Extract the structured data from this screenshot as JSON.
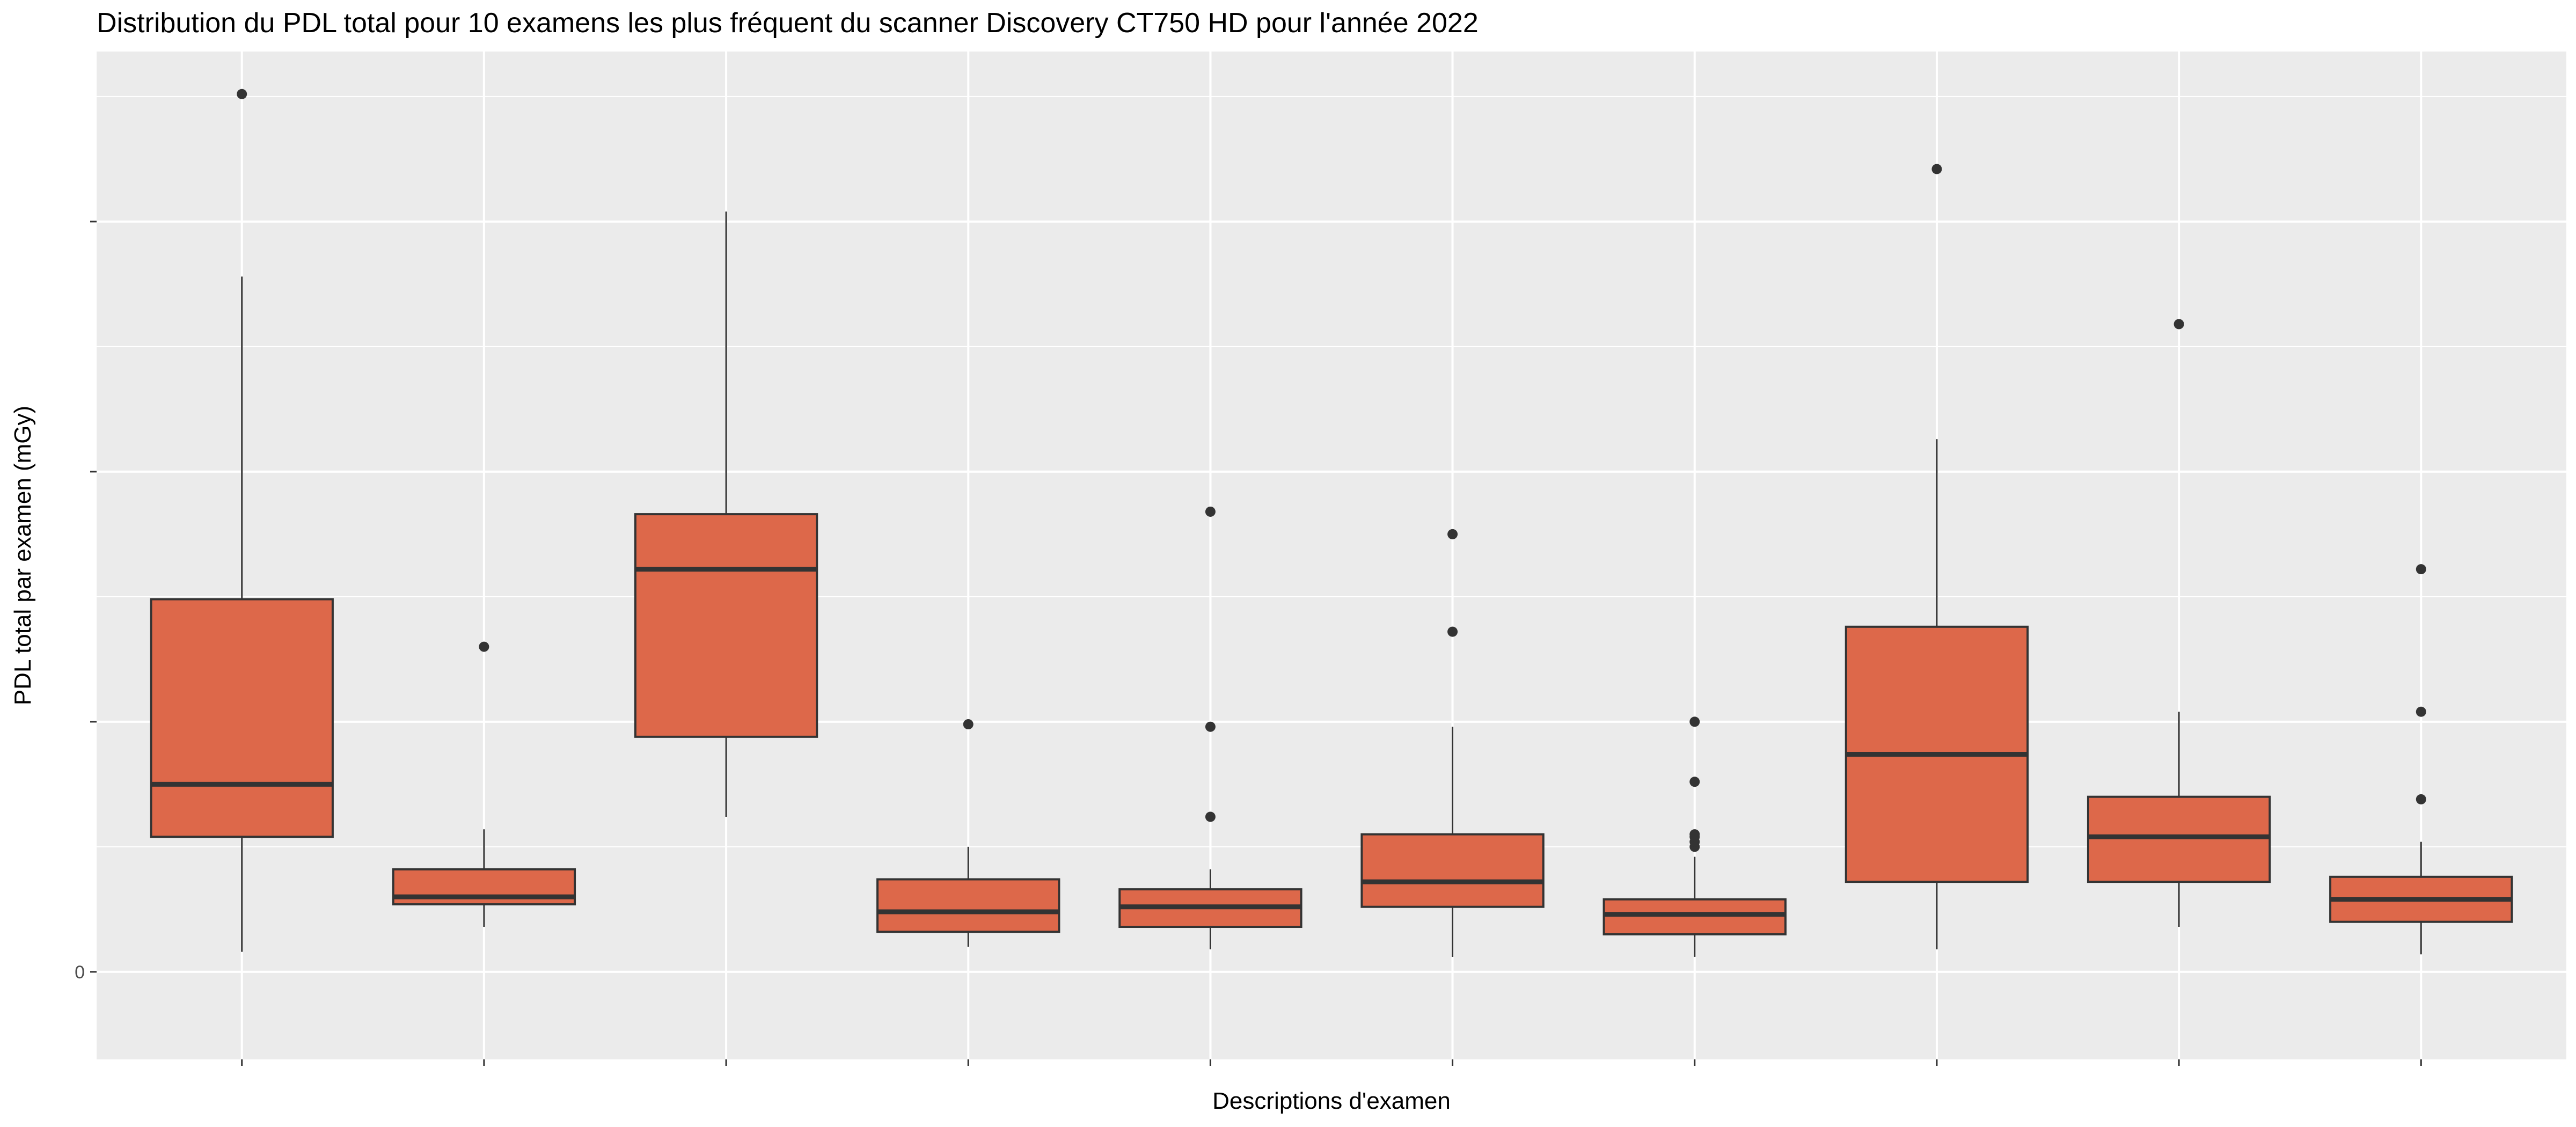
{
  "chart_data": {
    "type": "box",
    "title": "Distribution du PDL total pour 10 examens les plus fréquent du scanner Discovery CT750 HD pour l'année 2022",
    "xlabel": "Descriptions d'examen",
    "ylabel": "PDL total par examen (mGy)",
    "ylim": [
      -0.35,
      3.68
    ],
    "yticks": [
      {
        "value": 0,
        "label": "0"
      },
      {
        "value": 1,
        "label": ""
      },
      {
        "value": 2,
        "label": ""
      },
      {
        "value": 3,
        "label": ""
      }
    ],
    "grid": true,
    "fill_color": "#DD684A",
    "outline_color": "#333333",
    "panel_color": "#EBEBEB",
    "boxes": [
      {
        "category": "",
        "lower_whisker": 0.08,
        "q1": 0.54,
        "median": 0.75,
        "q3": 1.49,
        "upper_whisker": 2.78,
        "outliers": [
          3.51
        ]
      },
      {
        "category": "",
        "lower_whisker": 0.18,
        "q1": 0.27,
        "median": 0.3,
        "q3": 0.41,
        "upper_whisker": 0.57,
        "outliers": [
          1.3
        ]
      },
      {
        "category": "",
        "lower_whisker": 0.62,
        "q1": 0.94,
        "median": 1.61,
        "q3": 1.83,
        "upper_whisker": 3.04,
        "outliers": []
      },
      {
        "category": "",
        "lower_whisker": 0.1,
        "q1": 0.16,
        "median": 0.24,
        "q3": 0.37,
        "upper_whisker": 0.5,
        "outliers": [
          0.99
        ]
      },
      {
        "category": "",
        "lower_whisker": 0.09,
        "q1": 0.18,
        "median": 0.26,
        "q3": 0.33,
        "upper_whisker": 0.41,
        "outliers": [
          0.62,
          0.98,
          1.84
        ]
      },
      {
        "category": "",
        "lower_whisker": 0.06,
        "q1": 0.26,
        "median": 0.36,
        "q3": 0.55,
        "upper_whisker": 0.98,
        "outliers": [
          1.36,
          1.75
        ]
      },
      {
        "category": "",
        "lower_whisker": 0.06,
        "q1": 0.15,
        "median": 0.23,
        "q3": 0.29,
        "upper_whisker": 0.46,
        "outliers": [
          0.5,
          0.52,
          0.54,
          0.55,
          0.76,
          1.0
        ]
      },
      {
        "category": "",
        "lower_whisker": 0.09,
        "q1": 0.36,
        "median": 0.87,
        "q3": 1.38,
        "upper_whisker": 2.13,
        "outliers": [
          3.21
        ]
      },
      {
        "category": "",
        "lower_whisker": 0.18,
        "q1": 0.36,
        "median": 0.54,
        "q3": 0.7,
        "upper_whisker": 1.04,
        "outliers": [
          2.59
        ]
      },
      {
        "category": "",
        "lower_whisker": 0.07,
        "q1": 0.2,
        "median": 0.29,
        "q3": 0.38,
        "upper_whisker": 0.52,
        "outliers": [
          0.69,
          1.04,
          1.61
        ]
      }
    ]
  }
}
